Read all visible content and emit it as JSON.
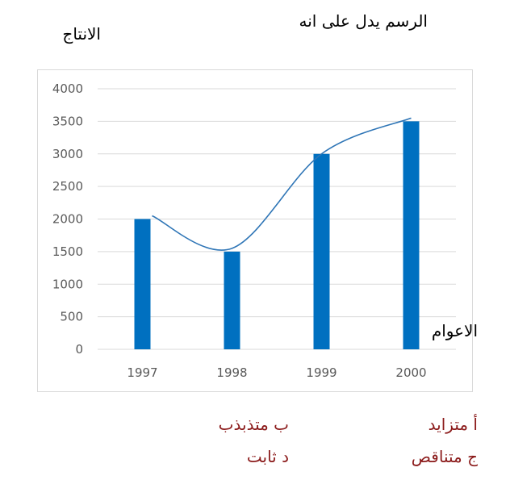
{
  "question": "الرسم يدل على انه",
  "options": {
    "a": "أ متزايد",
    "b": "ب متذبذب",
    "c": "ج متناقص",
    "d": "د ثابت"
  },
  "chart_data": {
    "type": "bar",
    "categories": [
      "1997",
      "1998",
      "1999",
      "2000"
    ],
    "values": [
      2000,
      1500,
      3000,
      3500
    ],
    "trend_line": [
      2050,
      1550,
      3000,
      3550
    ],
    "title": "",
    "xlabel": "الاعوام",
    "ylabel": "الانتاج",
    "ylim": [
      0,
      4000
    ],
    "yticks": [
      0,
      500,
      1000,
      1500,
      2000,
      2500,
      3000,
      3500,
      4000
    ],
    "grid": true,
    "colors": {
      "bar": "#0070c0",
      "line": "#2e75b6",
      "grid": "#d9d9d9",
      "tick_text": "#595959"
    }
  }
}
